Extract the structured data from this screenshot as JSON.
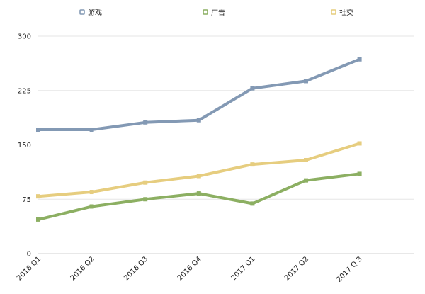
{
  "chart_data": {
    "type": "line",
    "title": "",
    "xlabel": "",
    "ylabel": "",
    "categories": [
      "2016 Q1",
      "2016 Q2",
      "2016 Q3",
      "2016 Q4",
      "2017 Q1",
      "2017 Q2",
      "2017 Q 3"
    ],
    "y_ticks": [
      "0",
      "75",
      "150",
      "225",
      "300"
    ],
    "ylim": [
      0,
      300
    ],
    "grid": true,
    "legend_position": "top",
    "series": [
      {
        "name": "游戏",
        "color": "#8399b4",
        "values": [
          171,
          171,
          181,
          184,
          228,
          238,
          268
        ]
      },
      {
        "name": "广告",
        "color": "#8caf62",
        "values": [
          47,
          65,
          75,
          83,
          69,
          101,
          110
        ]
      },
      {
        "name": "社交",
        "color": "#e6cd7f",
        "values": [
          79,
          85,
          98,
          107,
          123,
          129,
          152
        ]
      }
    ]
  }
}
